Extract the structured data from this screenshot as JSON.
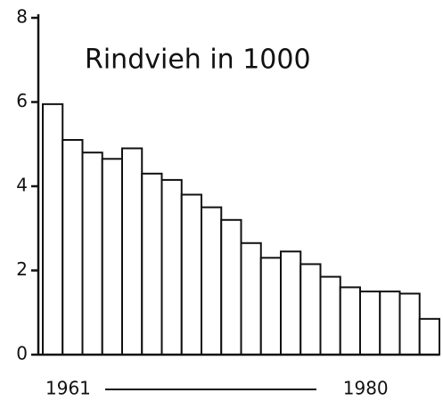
{
  "chart_data": {
    "type": "bar",
    "title": "Rindvieh in 1000",
    "categories": [
      "1961",
      null,
      null,
      null,
      null,
      null,
      null,
      null,
      null,
      null,
      null,
      null,
      null,
      null,
      null,
      "1980",
      null,
      null,
      null,
      null
    ],
    "values": [
      5.95,
      5.1,
      4.8,
      4.65,
      4.9,
      4.3,
      4.15,
      3.8,
      3.5,
      3.2,
      2.65,
      2.3,
      2.45,
      2.15,
      1.85,
      1.6,
      1.5,
      1.5,
      1.45,
      0.85
    ],
    "color": "#ffffff",
    "ylim": [
      0,
      8
    ],
    "yticks": [
      0,
      2,
      4,
      6,
      8
    ],
    "grid": false
  }
}
